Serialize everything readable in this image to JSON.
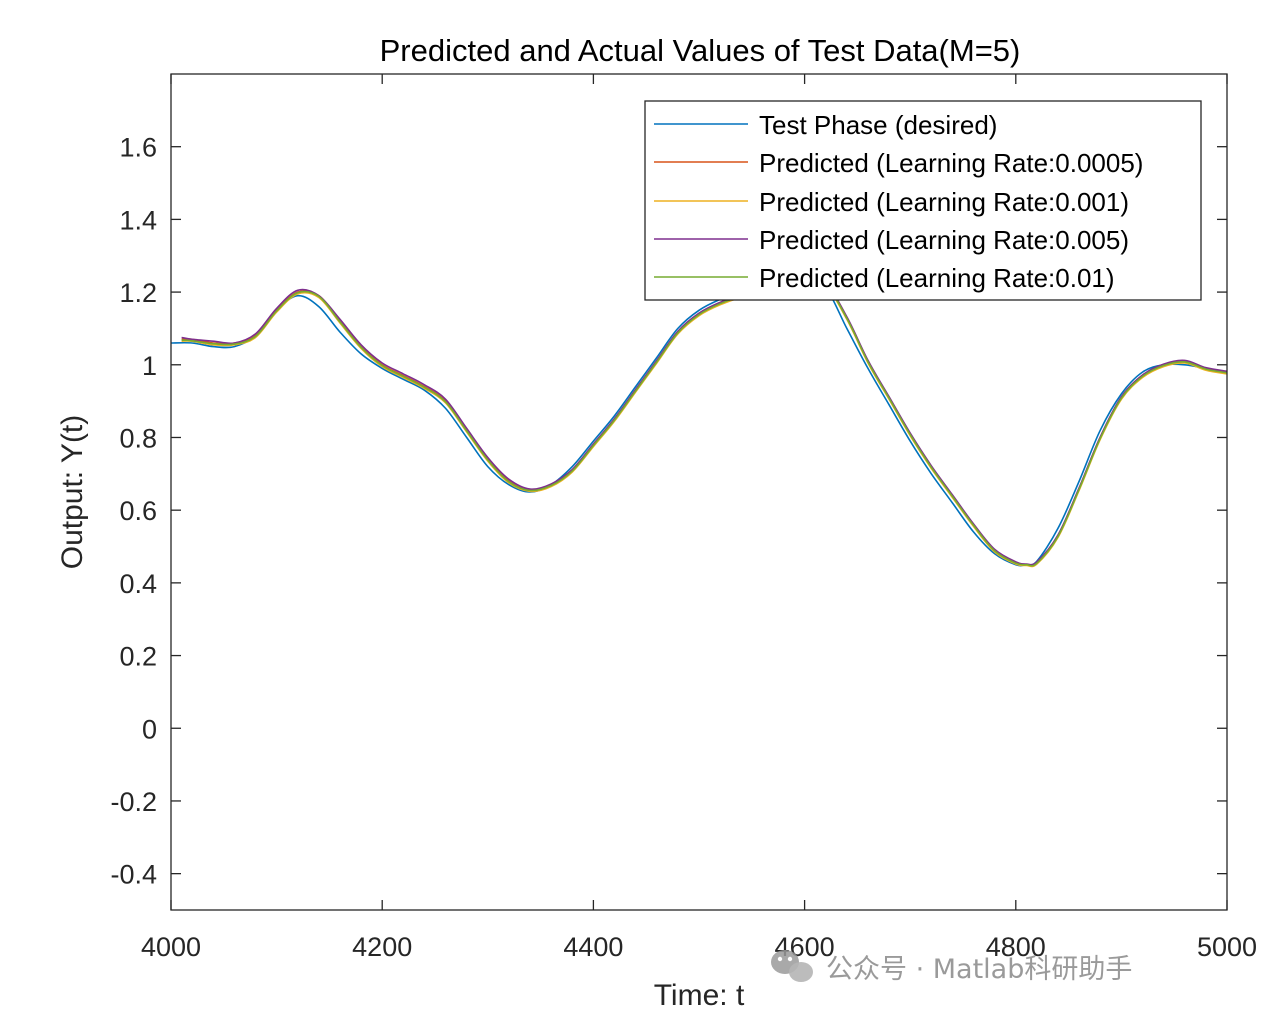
{
  "chart_data": {
    "type": "line",
    "title": "Predicted and Actual Values of Test Data(M=5)",
    "xlabel": "Time: t",
    "ylabel": "Output: Y(t)",
    "xlim": [
      4000,
      5000
    ],
    "ylim": [
      -0.5,
      1.8
    ],
    "xticks": [
      "4000",
      "4200",
      "4400",
      "4600",
      "4800",
      "5000"
    ],
    "yticks": [
      "-0.4",
      "-0.2",
      "0",
      "0.2",
      "0.4",
      "0.6",
      "0.8",
      "1",
      "1.2",
      "1.4",
      "1.6"
    ],
    "legend_position": "top-right",
    "grid": false,
    "series": [
      {
        "name": "Test Phase (desired)",
        "color": "#0072BD",
        "x": [
          4000,
          4020,
          4040,
          4060,
          4080,
          4100,
          4120,
          4140,
          4160,
          4180,
          4200,
          4220,
          4240,
          4260,
          4280,
          4300,
          4320,
          4340,
          4360,
          4380,
          4400,
          4420,
          4440,
          4460,
          4480,
          4500,
          4520,
          4540,
          4560,
          4580,
          4600,
          4620,
          4640,
          4660,
          4680,
          4700,
          4720,
          4740,
          4760,
          4780,
          4800,
          4810,
          4820,
          4840,
          4860,
          4880,
          4900,
          4920,
          4940,
          4960,
          4980,
          5000
        ],
        "y": [
          1.06,
          1.06,
          1.05,
          1.05,
          1.08,
          1.15,
          1.19,
          1.16,
          1.09,
          1.03,
          0.99,
          0.96,
          0.93,
          0.88,
          0.8,
          0.72,
          0.67,
          0.65,
          0.67,
          0.72,
          0.79,
          0.86,
          0.94,
          1.02,
          1.1,
          1.15,
          1.18,
          1.2,
          1.21,
          1.22,
          1.23,
          1.21,
          1.1,
          0.99,
          0.89,
          0.79,
          0.7,
          0.62,
          0.54,
          0.48,
          0.45,
          0.45,
          0.46,
          0.55,
          0.68,
          0.82,
          0.92,
          0.98,
          1.0,
          1.0,
          0.99,
          0.98
        ]
      },
      {
        "name": "Predicted (Learning Rate:0.0005)",
        "color": "#D95319",
        "x": [
          4010,
          4020,
          4040,
          4060,
          4080,
          4100,
          4120,
          4140,
          4160,
          4180,
          4200,
          4220,
          4240,
          4260,
          4280,
          4300,
          4320,
          4340,
          4360,
          4380,
          4400,
          4420,
          4440,
          4460,
          4480,
          4500,
          4520,
          4540,
          4560,
          4580,
          4600,
          4620,
          4640,
          4660,
          4680,
          4700,
          4720,
          4740,
          4760,
          4780,
          4800,
          4810,
          4820,
          4840,
          4860,
          4880,
          4900,
          4920,
          4940,
          4960,
          4980,
          5000
        ],
        "y": [
          1.07,
          1.07,
          1.06,
          1.06,
          1.08,
          1.15,
          1.2,
          1.19,
          1.12,
          1.05,
          1.0,
          0.97,
          0.94,
          0.9,
          0.82,
          0.74,
          0.68,
          0.655,
          0.67,
          0.71,
          0.78,
          0.85,
          0.93,
          1.01,
          1.09,
          1.14,
          1.17,
          1.19,
          1.2,
          1.21,
          1.22,
          1.22,
          1.13,
          1.01,
          0.91,
          0.81,
          0.72,
          0.64,
          0.56,
          0.49,
          0.455,
          0.45,
          0.455,
          0.53,
          0.66,
          0.8,
          0.91,
          0.97,
          1.0,
          1.01,
          0.99,
          0.98
        ]
      },
      {
        "name": "Predicted (Learning Rate:0.001)",
        "color": "#EDB120",
        "x": [
          4010,
          4020,
          4040,
          4060,
          4080,
          4100,
          4120,
          4140,
          4160,
          4180,
          4200,
          4220,
          4240,
          4260,
          4280,
          4300,
          4320,
          4340,
          4360,
          4380,
          4400,
          4420,
          4440,
          4460,
          4480,
          4500,
          4520,
          4540,
          4560,
          4580,
          4600,
          4620,
          4640,
          4660,
          4680,
          4700,
          4720,
          4740,
          4760,
          4780,
          4800,
          4810,
          4820,
          4840,
          4860,
          4880,
          4900,
          4920,
          4940,
          4960,
          4980,
          5000
        ],
        "y": [
          1.065,
          1.065,
          1.055,
          1.055,
          1.075,
          1.145,
          1.195,
          1.185,
          1.115,
          1.045,
          0.995,
          0.965,
          0.935,
          0.895,
          0.815,
          0.735,
          0.675,
          0.652,
          0.665,
          0.705,
          0.775,
          0.845,
          0.925,
          1.005,
          1.085,
          1.135,
          1.165,
          1.185,
          1.195,
          1.205,
          1.215,
          1.215,
          1.125,
          1.005,
          0.905,
          0.805,
          0.715,
          0.635,
          0.555,
          0.485,
          0.452,
          0.448,
          0.452,
          0.525,
          0.655,
          0.795,
          0.905,
          0.965,
          0.995,
          1.005,
          0.985,
          0.975
        ]
      },
      {
        "name": "Predicted (Learning Rate:0.005)",
        "color": "#7E2F8E",
        "x": [
          4010,
          4020,
          4040,
          4060,
          4080,
          4100,
          4120,
          4140,
          4160,
          4180,
          4200,
          4220,
          4240,
          4260,
          4280,
          4300,
          4320,
          4340,
          4360,
          4380,
          4400,
          4420,
          4440,
          4460,
          4480,
          4500,
          4520,
          4540,
          4560,
          4580,
          4600,
          4620,
          4640,
          4660,
          4680,
          4700,
          4720,
          4740,
          4760,
          4780,
          4800,
          4810,
          4820,
          4840,
          4860,
          4880,
          4900,
          4920,
          4940,
          4960,
          4980,
          5000
        ],
        "y": [
          1.075,
          1.07,
          1.065,
          1.06,
          1.085,
          1.155,
          1.205,
          1.19,
          1.125,
          1.055,
          1.005,
          0.975,
          0.945,
          0.905,
          0.825,
          0.745,
          0.685,
          0.658,
          0.672,
          0.712,
          0.782,
          0.852,
          0.932,
          1.012,
          1.092,
          1.142,
          1.172,
          1.192,
          1.202,
          1.212,
          1.222,
          1.222,
          1.132,
          1.012,
          0.912,
          0.812,
          0.722,
          0.642,
          0.562,
          0.492,
          0.458,
          0.452,
          0.458,
          0.532,
          0.662,
          0.802,
          0.912,
          0.972,
          1.002,
          1.012,
          0.992,
          0.982
        ]
      },
      {
        "name": "Predicted (Learning Rate:0.01)",
        "color": "#77AC30",
        "x": [
          4010,
          4020,
          4040,
          4060,
          4080,
          4100,
          4120,
          4140,
          4160,
          4180,
          4200,
          4220,
          4240,
          4260,
          4280,
          4300,
          4320,
          4340,
          4360,
          4380,
          4400,
          4420,
          4440,
          4460,
          4480,
          4500,
          4520,
          4540,
          4560,
          4580,
          4600,
          4620,
          4640,
          4660,
          4680,
          4700,
          4720,
          4740,
          4760,
          4780,
          4800,
          4810,
          4820,
          4840,
          4860,
          4880,
          4900,
          4920,
          4940,
          4960,
          4980,
          5000
        ],
        "y": [
          1.068,
          1.066,
          1.058,
          1.057,
          1.078,
          1.148,
          1.198,
          1.188,
          1.118,
          1.048,
          0.998,
          0.968,
          0.938,
          0.898,
          0.818,
          0.738,
          0.678,
          0.654,
          0.668,
          0.708,
          0.778,
          0.848,
          0.928,
          1.008,
          1.088,
          1.138,
          1.168,
          1.188,
          1.198,
          1.208,
          1.218,
          1.218,
          1.128,
          1.008,
          0.908,
          0.808,
          0.718,
          0.638,
          0.558,
          0.488,
          0.454,
          0.45,
          0.454,
          0.528,
          0.658,
          0.798,
          0.908,
          0.968,
          0.998,
          1.008,
          0.988,
          0.978
        ]
      }
    ]
  },
  "watermark": {
    "text": "公众号 · Matlab科研助手",
    "icon": "wechat-icon"
  }
}
